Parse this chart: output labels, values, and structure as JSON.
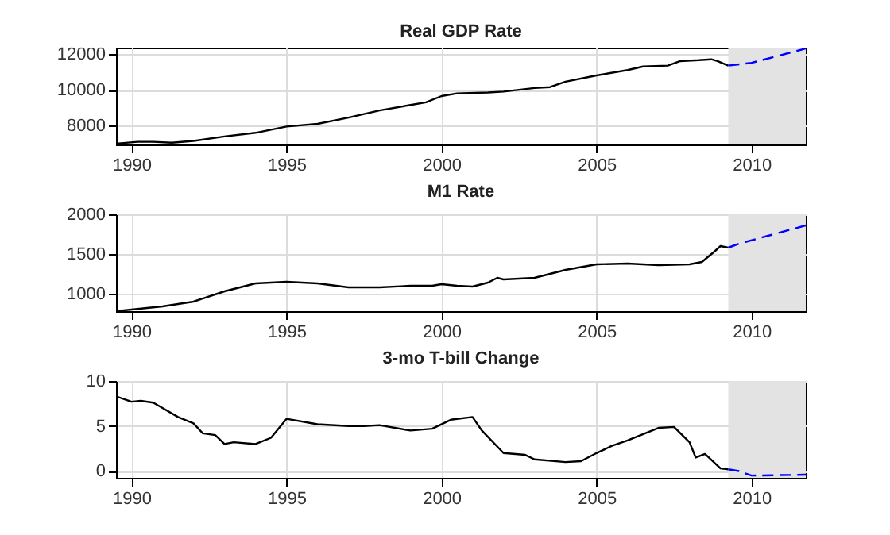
{
  "chart_data": [
    {
      "type": "line",
      "title": "Real GDP Rate",
      "xlim": [
        1989.5,
        2011.75
      ],
      "xticks": [
        1990,
        1995,
        2000,
        2005,
        2010
      ],
      "ylim": [
        6950,
        12350
      ],
      "yticks": [
        8000,
        10000,
        12000
      ],
      "grid": true,
      "bands": [
        {
          "axis": "x",
          "from": 2009.25,
          "to": 2011.75,
          "color": "#e3e3e3"
        }
      ],
      "series": [
        {
          "color": "#000000",
          "line_style": "solid",
          "x": [
            1989.5,
            1990.2,
            1990.7,
            1991.3,
            1992,
            1993,
            1994,
            1995,
            1996,
            1997,
            1998,
            1999,
            1999.5,
            2000,
            2000.5,
            2001.5,
            2002,
            2003,
            2003.5,
            2004,
            2005,
            2006,
            2006.5,
            2007.3,
            2007.7,
            2008.3,
            2008.7,
            2008.9,
            2009.25
          ],
          "values": [
            7000,
            7100,
            7100,
            7050,
            7150,
            7400,
            7600,
            7950,
            8100,
            8450,
            8850,
            9150,
            9300,
            9650,
            9800,
            9850,
            9900,
            10100,
            10150,
            10450,
            10800,
            11100,
            11300,
            11350,
            11600,
            11650,
            11700,
            11600,
            11350
          ]
        },
        {
          "color": "#0000ff",
          "line_style": "dashed",
          "x": [
            2009.25,
            2010,
            2011.75
          ],
          "values": [
            11350,
            11500,
            12300
          ]
        }
      ]
    },
    {
      "type": "line",
      "title": "M1 Rate",
      "xlim": [
        1989.5,
        2011.75
      ],
      "xticks": [
        1990,
        1995,
        2000,
        2005,
        2010
      ],
      "ylim": [
        780,
        2000
      ],
      "yticks": [
        1000,
        1500,
        2000
      ],
      "grid": true,
      "bands": [
        {
          "axis": "x",
          "from": 2009.25,
          "to": 2011.75,
          "color": "#e3e3e3"
        }
      ],
      "series": [
        {
          "color": "#000000",
          "line_style": "solid",
          "x": [
            1989.5,
            1990,
            1991,
            1992,
            1993,
            1994,
            1995,
            1996,
            1997,
            1998,
            1999,
            1999.7,
            2000,
            2000.5,
            2001,
            2001.5,
            2001.8,
            2002,
            2003,
            2003.5,
            2004,
            2005,
            2006,
            2007,
            2008,
            2008.4,
            2008.8,
            2009,
            2009.25
          ],
          "values": [
            780,
            800,
            840,
            900,
            1030,
            1130,
            1150,
            1130,
            1080,
            1080,
            1100,
            1100,
            1120,
            1100,
            1090,
            1140,
            1200,
            1180,
            1200,
            1250,
            1300,
            1370,
            1380,
            1360,
            1370,
            1400,
            1530,
            1600,
            1580
          ]
        },
        {
          "color": "#0000ff",
          "line_style": "dashed",
          "x": [
            2009.25,
            2009.6,
            2011.75
          ],
          "values": [
            1580,
            1630,
            1860
          ]
        }
      ]
    },
    {
      "type": "line",
      "title": "3-mo T-bill Change",
      "xlim": [
        1989.5,
        2011.75
      ],
      "xticks": [
        1990,
        1995,
        2000,
        2005,
        2010
      ],
      "ylim": [
        -0.75,
        10
      ],
      "yticks": [
        0,
        5,
        10
      ],
      "grid": true,
      "bands": [
        {
          "axis": "x",
          "from": 2009.25,
          "to": 2011.75,
          "color": "#e3e3e3"
        }
      ],
      "series": [
        {
          "color": "#000000",
          "line_style": "solid",
          "x": [
            1989.5,
            1990,
            1990.3,
            1990.7,
            1991,
            1991.5,
            1992,
            1992.3,
            1992.7,
            1993,
            1993.3,
            1994,
            1994.5,
            1995,
            1996,
            1997,
            1997.5,
            1998,
            1999,
            1999.7,
            2000.3,
            2001,
            2001.3,
            2002,
            2002.7,
            2003,
            2004,
            2004.5,
            2005,
            2005.5,
            2006,
            2007,
            2007.5,
            2008,
            2008.2,
            2008.5,
            2009,
            2009.25
          ],
          "values": [
            8.3,
            7.7,
            7.8,
            7.6,
            7.0,
            6.0,
            5.3,
            4.2,
            4.0,
            3.0,
            3.2,
            3.0,
            3.7,
            5.8,
            5.2,
            5.0,
            5.0,
            5.1,
            4.5,
            4.7,
            5.7,
            6.0,
            4.5,
            2.0,
            1.8,
            1.3,
            1.0,
            1.1,
            2.0,
            2.8,
            3.4,
            4.8,
            4.9,
            3.2,
            1.5,
            1.9,
            0.3,
            0.2
          ]
        },
        {
          "color": "#0000ff",
          "line_style": "dashed",
          "x": [
            2009.25,
            2009.6,
            2010,
            2011.75
          ],
          "values": [
            0.2,
            0.0,
            -0.5,
            -0.4
          ]
        }
      ]
    }
  ]
}
